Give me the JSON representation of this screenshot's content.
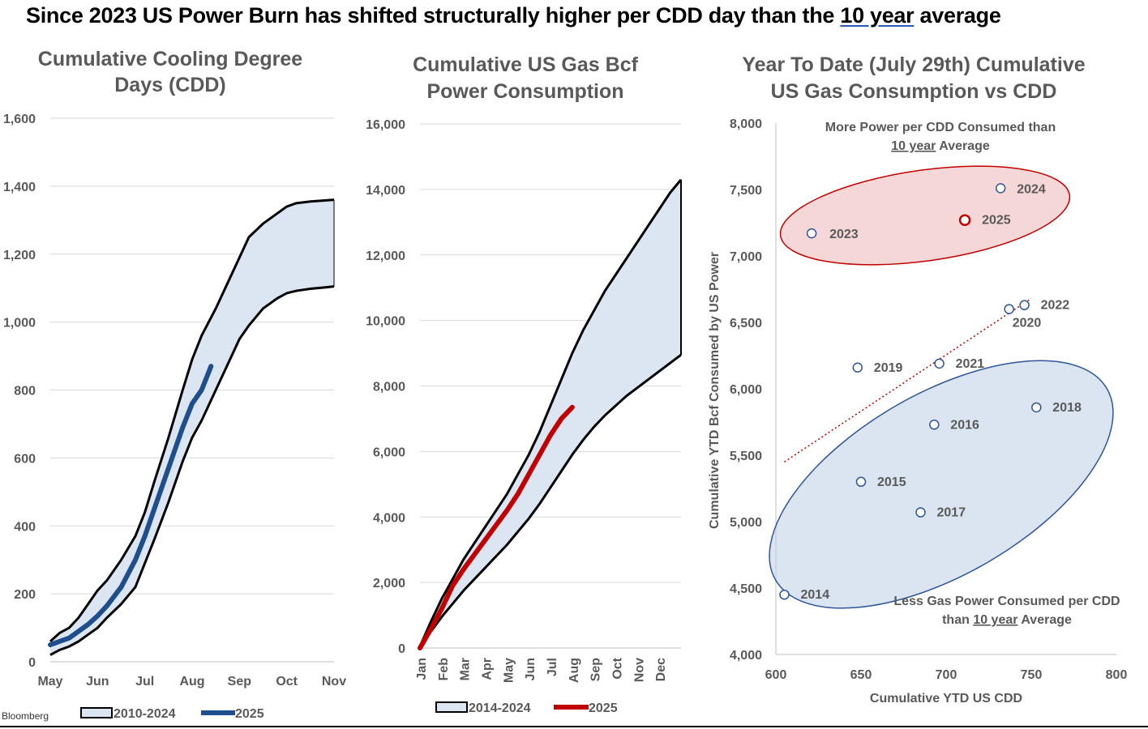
{
  "title": {
    "pre": "Since 2023 US Power Burn has shifted structurally higher per CDD day than the ",
    "underlined": "10 year",
    "post": " average"
  },
  "source": "Bloomberg",
  "chart_data": [
    {
      "type": "area",
      "title_lines": [
        "Cumulative Cooling Degree",
        "Days (CDD)"
      ],
      "x_ticks": [
        "May",
        "Jun",
        "Jul",
        "Aug",
        "Sep",
        "Oct",
        "Nov"
      ],
      "ylim": [
        0,
        1600
      ],
      "y_ticks": [
        0,
        200,
        400,
        600,
        800,
        1000,
        1200,
        1400,
        1600
      ],
      "band": {
        "name": "2010-2024",
        "x": [
          0,
          0.2,
          0.4,
          0.6,
          0.8,
          1,
          1.2,
          1.5,
          1.8,
          2,
          2.2,
          2.5,
          2.8,
          3,
          3.2,
          3.5,
          3.7,
          4,
          4.2,
          4.5,
          4.8,
          5,
          5.2,
          5.5,
          5.8,
          6
        ],
        "upper": [
          60,
          85,
          100,
          130,
          170,
          210,
          240,
          300,
          370,
          440,
          530,
          660,
          800,
          890,
          960,
          1040,
          1100,
          1190,
          1250,
          1290,
          1320,
          1340,
          1350,
          1355,
          1358,
          1360
        ],
        "lower": [
          20,
          35,
          45,
          60,
          80,
          100,
          130,
          170,
          220,
          290,
          360,
          470,
          590,
          660,
          710,
          800,
          860,
          950,
          990,
          1040,
          1070,
          1085,
          1092,
          1098,
          1102,
          1105
        ]
      },
      "line": {
        "name": "2025",
        "color": "#1f4e8c",
        "x": [
          0,
          0.2,
          0.4,
          0.6,
          0.8,
          1,
          1.2,
          1.5,
          1.8,
          2,
          2.2,
          2.5,
          2.8,
          3,
          3.2,
          3.4
        ],
        "y": [
          50,
          60,
          70,
          90,
          110,
          135,
          165,
          220,
          300,
          370,
          450,
          570,
          690,
          760,
          800,
          870
        ]
      }
    },
    {
      "type": "area",
      "title_lines": [
        "Cumulative US Gas Bcf",
        "Power Consumption"
      ],
      "x_ticks": [
        "Jan",
        "Feb",
        "Mar",
        "Apr",
        "May",
        "Jun",
        "Jul",
        "Aug",
        "Sep",
        "Oct",
        "Nov",
        "Dec"
      ],
      "ylim": [
        0,
        16000
      ],
      "y_ticks": [
        0,
        2000,
        4000,
        6000,
        8000,
        10000,
        12000,
        14000,
        16000
      ],
      "band": {
        "name": "2014-2024",
        "x": [
          0,
          0.5,
          1,
          1.5,
          2,
          2.5,
          3,
          3.5,
          4,
          4.5,
          5,
          5.5,
          6,
          6.5,
          7,
          7.5,
          8,
          8.5,
          9,
          9.5,
          10,
          10.5,
          11,
          11.5,
          12
        ],
        "upper": [
          50,
          800,
          1500,
          2100,
          2700,
          3200,
          3700,
          4200,
          4700,
          5300,
          5900,
          6600,
          7400,
          8200,
          9000,
          9700,
          10300,
          10900,
          11400,
          11900,
          12400,
          12900,
          13400,
          13900,
          14300
        ],
        "lower": [
          30,
          500,
          950,
          1350,
          1750,
          2100,
          2450,
          2800,
          3150,
          3550,
          3950,
          4400,
          4900,
          5400,
          5900,
          6350,
          6750,
          7100,
          7400,
          7700,
          7950,
          8200,
          8450,
          8700,
          8950
        ]
      },
      "line": {
        "name": "2025",
        "color": "#c00000",
        "x": [
          0,
          0.3,
          0.6,
          1,
          1.5,
          2,
          2.5,
          3,
          3.5,
          4,
          4.5,
          5,
          5.5,
          6,
          6.5,
          7
        ],
        "y": [
          0,
          350,
          700,
          1200,
          1900,
          2400,
          2850,
          3300,
          3750,
          4200,
          4700,
          5300,
          5900,
          6500,
          7000,
          7350
        ]
      }
    },
    {
      "type": "scatter",
      "title_lines": [
        "Year To Date (July 29th) Cumulative",
        "US Gas Consumption vs CDD"
      ],
      "xlabel": "Cumulative YTD US CDD",
      "ylabel": "Cumulative YTD Bcf Consumed by US Power",
      "xlim": [
        600,
        800
      ],
      "ylim": [
        4000,
        8000
      ],
      "x_ticks": [
        600,
        650,
        700,
        750,
        800
      ],
      "y_ticks": [
        4000,
        4500,
        5000,
        5500,
        6000,
        6500,
        7000,
        7500,
        8000
      ],
      "points": [
        {
          "label": "2014",
          "x": 605,
          "y": 4450
        },
        {
          "label": "2015",
          "x": 650,
          "y": 5300
        },
        {
          "label": "2016",
          "x": 693,
          "y": 5730
        },
        {
          "label": "2017",
          "x": 685,
          "y": 5070
        },
        {
          "label": "2018",
          "x": 753,
          "y": 5860
        },
        {
          "label": "2019",
          "x": 648,
          "y": 6160
        },
        {
          "label": "2020",
          "x": 737,
          "y": 6600
        },
        {
          "label": "2021",
          "x": 696,
          "y": 6190
        },
        {
          "label": "2022",
          "x": 746,
          "y": 6630
        },
        {
          "label": "2023",
          "x": 621,
          "y": 7170
        },
        {
          "label": "2024",
          "x": 732,
          "y": 7510
        },
        {
          "label": "2025",
          "x": 711,
          "y": 7270
        }
      ],
      "trend": {
        "x": [
          605,
          750
        ],
        "y": [
          5450,
          6680
        ]
      },
      "annotations": {
        "top_line1": "More Power per CDD Consumed than",
        "top_underlined": "10 year",
        "top_rest": " Average",
        "bottom_line1": "Less Gas Power Consumed per CDD",
        "bottom_pre": "than ",
        "bottom_underlined": "10 year",
        "bottom_rest": " Average"
      }
    }
  ]
}
